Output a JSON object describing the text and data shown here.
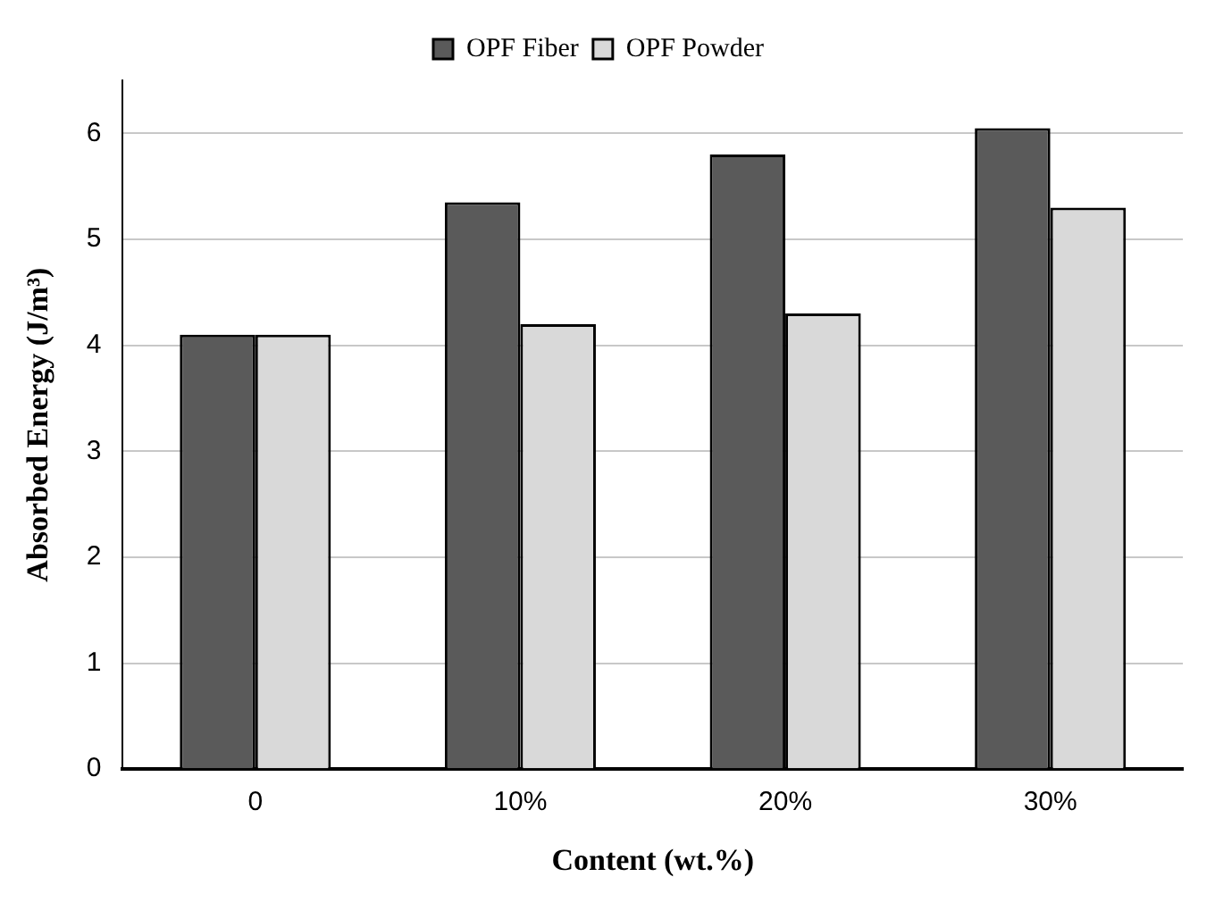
{
  "chart_data": {
    "type": "bar",
    "xlabel": "Content (wt.%)",
    "ylabel": "Absorbed Energy (J/m³)",
    "categories": [
      "0",
      "10%",
      "20%",
      "30%"
    ],
    "series": [
      {
        "name": "OPF Fiber",
        "color": "#5a5a5a",
        "values": [
          4.1,
          5.35,
          5.8,
          6.05
        ]
      },
      {
        "name": "OPF Powder",
        "color": "#d9d9d9",
        "values": [
          4.1,
          4.2,
          4.3,
          5.3
        ]
      }
    ],
    "ylim": [
      0,
      6.5
    ],
    "yticks": [
      0,
      1,
      2,
      3,
      4,
      5,
      6
    ],
    "grid": "y",
    "legend": "top"
  }
}
